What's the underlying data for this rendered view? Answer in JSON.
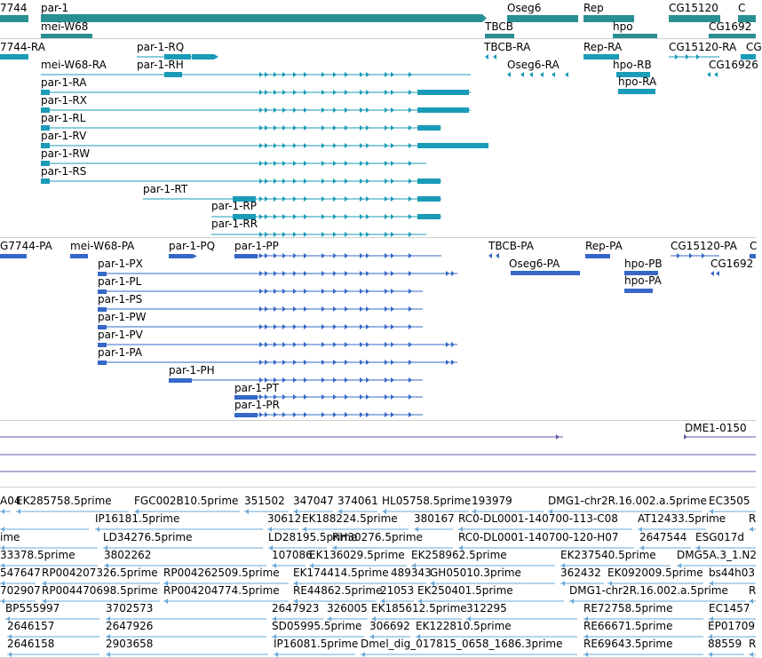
{
  "colors": {
    "gene": "#2a8f92",
    "transcript_ra": "#1a9bb8",
    "transcript_pa": "#3568c7",
    "match": "#6b56a8",
    "est": "#6aa8d8"
  },
  "genes": [
    {
      "label": "7744"
    },
    {
      "label": "par-1"
    },
    {
      "label": "Oseg6"
    },
    {
      "label": "Rep"
    },
    {
      "label": "CG15120"
    },
    {
      "label": "C"
    },
    {
      "label": "mei-W68"
    },
    {
      "label": "TBCB"
    },
    {
      "label": "hpo"
    },
    {
      "label": "CG1692"
    }
  ],
  "ra_labels": [
    "7744-RA",
    "par-1-RQ",
    "TBCB-RA",
    "Rep-RA",
    "CG15120-RA",
    "CG",
    "mei-W68-RA",
    "par-1-RH",
    "Oseg6-RA",
    "hpo-RB",
    "CG16926",
    "hpo-RA",
    "par-1-RA",
    "par-1-RX",
    "par-1-RL",
    "par-1-RV",
    "par-1-RW",
    "par-1-RS",
    "par-1-RT",
    "par-1-RP",
    "par-1-RR"
  ],
  "pa_labels": [
    "G7744-PA",
    "mei-W68-PA",
    "par-1-PQ",
    "par-1-PP",
    "TBCB-PA",
    "Rep-PA",
    "CG15120-PA",
    "C",
    "Oseg6-PA",
    "hpo-PB",
    "CG1692",
    "hpo-PA",
    "par-1-PX",
    "par-1-PL",
    "par-1-PS",
    "par-1-PW",
    "par-1-PV",
    "par-1-PA",
    "par-1-PH",
    "par-1-PT",
    "par-1-PR"
  ],
  "match_labels": [
    "DME1-0150"
  ],
  "est_labels": [
    "A04",
    "EK285758.5prime",
    "FGC002B10.5prime",
    "351502",
    "347047",
    "374061",
    "HL05758.5prime",
    "193979",
    "DMG1-chr2R.16.002.a.5prime",
    "EC3505",
    "IP16181.5prime",
    "30612",
    "EK188224.5prime",
    "380167",
    "RC0-DL0001-140700-113-C08",
    "AT12433.5prime",
    "R",
    "ime",
    "LD34276.5prime",
    "LD28195.5prime",
    "RH30276.5prime",
    "RC0-DL0001-140700-120-H07",
    "2647544",
    "ESG017d",
    "33378.5prime",
    "3802262",
    "107086",
    "EK136029.5prime",
    "EK258962.5prime",
    "EK237540.5prime",
    "DMG5A.3_1.N2",
    "547647",
    "RP004207326.5prime",
    "RP004262509.5prime",
    "EK174414.5prime",
    "489343",
    "GH05010.3prime",
    "362432",
    "EK092009.5prime",
    "bs44h03",
    "702907",
    "RP004470698.5prime",
    "RP004204774.5prime",
    "RE44862.5prime",
    "21053",
    "EK250401.5prime",
    "DMG1-chr2R.16.002.a.5prime",
    "R",
    "BP555997",
    "3702573",
    "2647923",
    "326005",
    "EK185612.5prime",
    "312295",
    "RE72758.5prime",
    "EC1457",
    "2646157",
    "2647926",
    "SD05995.5prime",
    "306692",
    "EK122810.5prime",
    "RE66671.5prime",
    "EP01709",
    "2646158",
    "2903658",
    "IP16081.5prime",
    "Dmel_dig_017815_0658_1686.3prime",
    "RE69643.5prime",
    "88559",
    "R"
  ]
}
